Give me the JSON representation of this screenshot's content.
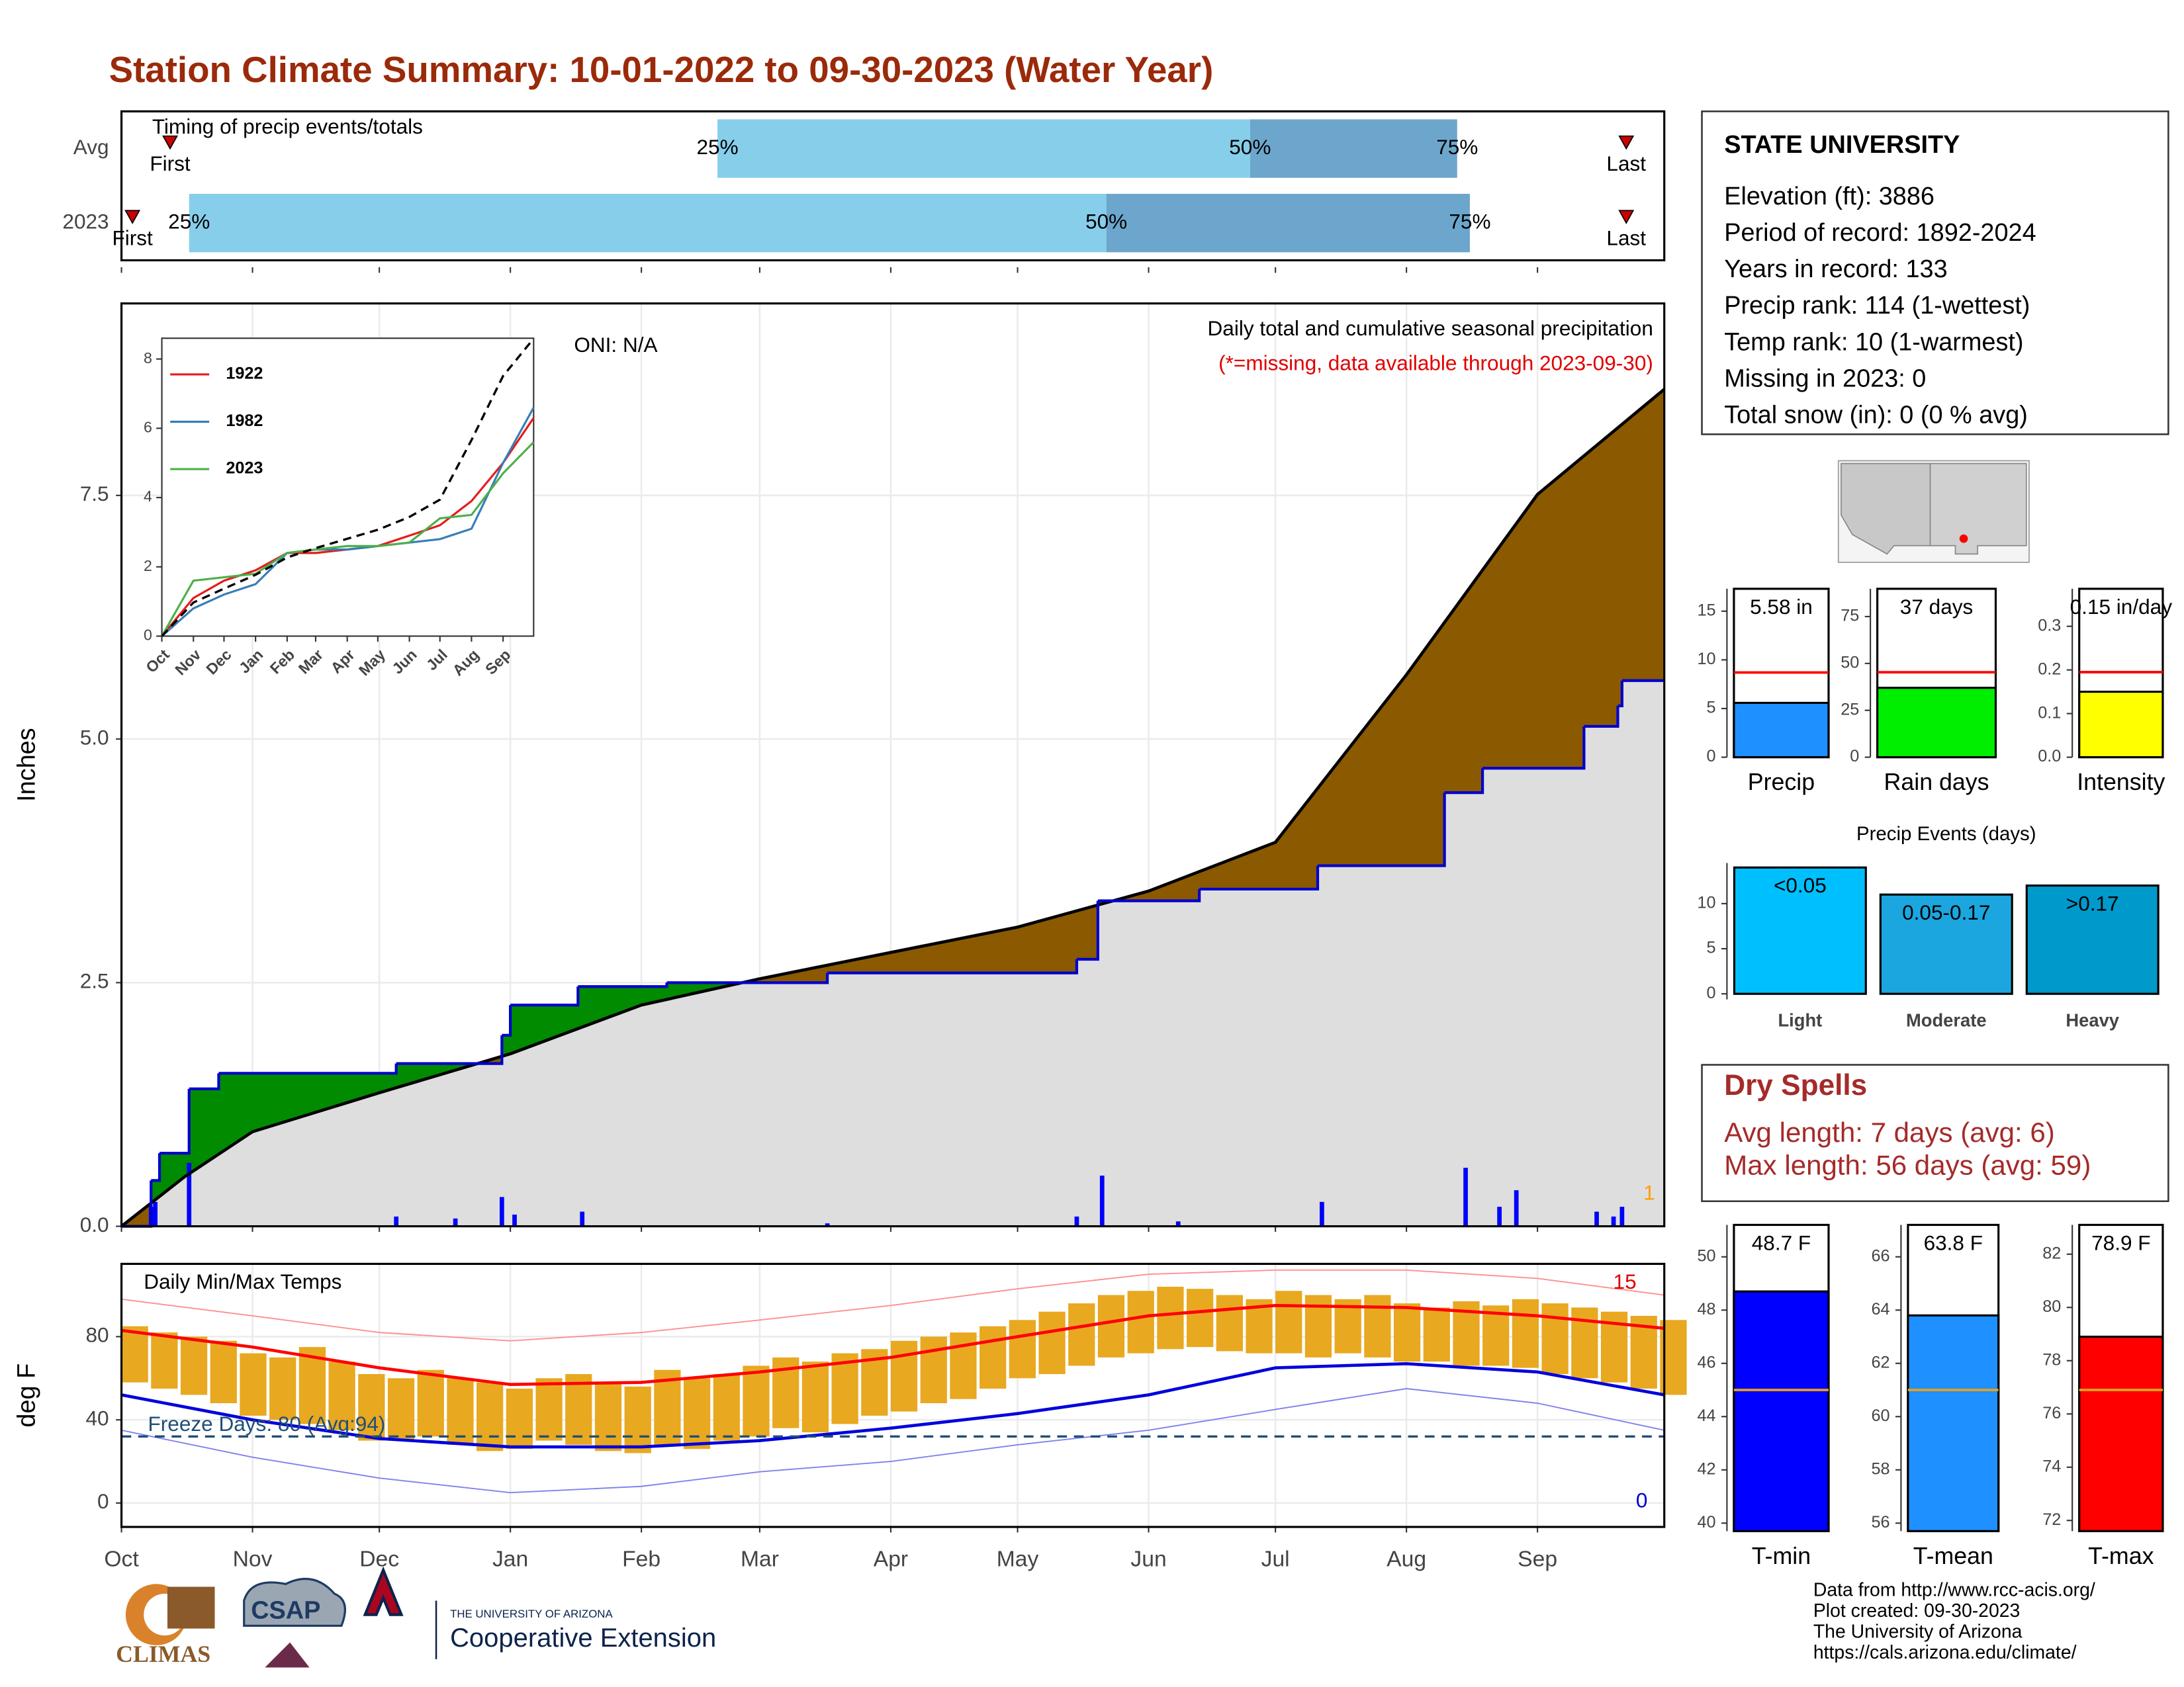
{
  "title": "Station Climate Summary: 10-01-2022 to 09-30-2023 (Water Year)",
  "info": {
    "title": "STATE UNIVERSITY",
    "lines": [
      "Elevation (ft): 3886",
      "Period of record: 1892-2024",
      "Years in record: 133",
      "Precip rank: 114 (1-wettest)",
      "Temp rank: 10 (1-warmest)",
      "Missing in 2023: 0",
      "Total snow (in): 0 (0 % avg)"
    ]
  },
  "dry_spells": {
    "title": "Dry Spells",
    "lines": [
      "Avg length: 7 days (avg: 6)",
      "Max length: 56 days (avg: 59)"
    ]
  },
  "credits": [
    "Data from http://www.rcc-acis.org/",
    "Plot created: 09-30-2023",
    "The University of Arizona",
    "https://cals.arizona.edu/climate/"
  ],
  "logos": {
    "climas": "CLIMAS",
    "csap": "CSAP",
    "university": "THE UNIVERSITY OF ARIZONA",
    "extension": "Cooperative Extension"
  },
  "chart_data": [
    {
      "type": "timing",
      "title": "Timing of precip events/totals",
      "categories": [
        "Avg",
        "2023"
      ],
      "xlim": [
        0,
        365
      ],
      "markers": [
        {
          "name": "First",
          "values": [
            11.5,
            2.6
          ]
        },
        {
          "name": "Last",
          "values": [
            356,
            356
          ]
        }
      ],
      "percentiles": [
        {
          "name": "25%",
          "values": [
            141,
            16
          ]
        },
        {
          "name": "50%",
          "values": [
            267,
            233
          ]
        },
        {
          "name": "75%",
          "values": [
            316,
            319
          ]
        }
      ],
      "colors": [
        "#87ceeb",
        "#6ca6cd"
      ],
      "marker_color": "#cc0000"
    },
    {
      "type": "precip",
      "title": "Daily total and cumulative seasonal precipitation",
      "subtitle": "(*=missing, data available through 2023-09-30)",
      "annotation": "ONI: N/A",
      "ylabel": "Inches",
      "count_label": "1",
      "xlim": [
        0,
        365
      ],
      "ylim": [
        0,
        9.47
      ],
      "xticks": [
        0,
        31,
        61,
        92,
        123,
        151,
        182,
        212,
        243,
        273,
        304,
        335
      ],
      "yticks": [
        {
          "value": 0,
          "label": "0.0"
        },
        2.5,
        {
          "value": 5,
          "label": "5.0"
        },
        7.5
      ],
      "grid": true,
      "average": {
        "color": "#000000",
        "x": [
          0,
          15,
          31,
          61,
          92,
          123,
          151,
          182,
          212,
          243,
          273,
          304,
          335,
          365
        ],
        "values": [
          0,
          0.51,
          0.97,
          1.37,
          1.77,
          2.27,
          2.54,
          2.81,
          3.07,
          3.44,
          3.94,
          5.66,
          7.51,
          8.59
        ]
      },
      "current": {
        "color": "#0000cc",
        "x": [
          0,
          7,
          9,
          16,
          23,
          65,
          90,
          92,
          108,
          129,
          167,
          226,
          231,
          255,
          283,
          313,
          322,
          346,
          354,
          355,
          365
        ],
        "values": [
          0,
          0.47,
          0.75,
          1.41,
          1.57,
          1.67,
          1.96,
          2.27,
          2.46,
          2.5,
          2.6,
          2.74,
          3.34,
          3.46,
          3.7,
          4.45,
          4.7,
          5.13,
          5.34,
          5.6,
          5.6
        ]
      },
      "bars": {
        "color": "#0000ff",
        "x": [
          7,
          8,
          16,
          65,
          79,
          90,
          93,
          109,
          167,
          226,
          232,
          250,
          284,
          318,
          326,
          330,
          349,
          353,
          355
        ],
        "values": [
          0.2,
          0.25,
          0.65,
          0.1,
          0.08,
          0.3,
          0.12,
          0.15,
          0.03,
          0.1,
          0.52,
          0.05,
          0.25,
          0.6,
          0.2,
          0.37,
          0.15,
          0.1,
          0.2
        ]
      },
      "above_color": "#008b00",
      "below_color": "#8b5a00",
      "area_color": "#dedede"
    },
    {
      "type": "line",
      "xlim": [
        0,
        365
      ],
      "ylim": [
        0,
        8.6
      ],
      "yticks": [
        0,
        2,
        4,
        6,
        8
      ],
      "xticks": [
        {
          "value": 0,
          "label": "Oct"
        },
        {
          "value": 31,
          "label": "Nov"
        },
        {
          "value": 61,
          "label": "Dec"
        },
        {
          "value": 92,
          "label": "Jan"
        },
        {
          "value": 123,
          "label": "Feb"
        },
        {
          "value": 151,
          "label": "Mar"
        },
        {
          "value": 182,
          "label": "Apr"
        },
        {
          "value": 212,
          "label": "May"
        },
        {
          "value": 243,
          "label": "Jun"
        },
        {
          "value": 273,
          "label": "Jul"
        },
        {
          "value": 304,
          "label": "Aug"
        },
        {
          "value": 335,
          "label": "Sep"
        }
      ],
      "x": [
        0,
        31,
        61,
        92,
        123,
        151,
        182,
        212,
        243,
        273,
        304,
        335,
        365
      ],
      "average": {
        "color": "#000000",
        "values": [
          0,
          0.97,
          1.37,
          1.77,
          2.27,
          2.54,
          2.81,
          3.07,
          3.44,
          3.94,
          5.66,
          7.51,
          8.59
        ]
      },
      "series": [
        {
          "name": "1922",
          "color": "#e41a1c",
          "values": [
            0,
            1.1,
            1.6,
            1.9,
            2.4,
            2.4,
            2.5,
            2.6,
            2.9,
            3.2,
            3.9,
            5.0,
            6.3
          ]
        },
        {
          "name": "1982",
          "color": "#377eb8",
          "values": [
            0,
            0.8,
            1.2,
            1.5,
            2.4,
            2.5,
            2.5,
            2.6,
            2.7,
            2.8,
            3.1,
            5.0,
            6.6
          ]
        },
        {
          "name": "2023",
          "color": "#4daf4a",
          "values": [
            0,
            1.6,
            1.7,
            1.8,
            2.4,
            2.5,
            2.6,
            2.6,
            2.7,
            3.4,
            3.5,
            4.7,
            5.6
          ]
        }
      ]
    },
    {
      "type": "temps",
      "title": "Daily Min/Max Temps",
      "annotation": "Freeze Days: 80 (Avg:94)",
      "freeze": 32,
      "ylabel": "deg F",
      "record_high_count": "15",
      "record_low_count": "0",
      "xlim": [
        0,
        365
      ],
      "ylim": [
        -11.5,
        115
      ],
      "yticks": [
        0,
        40,
        80
      ],
      "grid": true,
      "xticks": [
        {
          "value": 0,
          "label": "Oct"
        },
        {
          "value": 31,
          "label": "Nov"
        },
        {
          "value": 61,
          "label": "Dec"
        },
        {
          "value": 92,
          "label": "Jan"
        },
        {
          "value": 123,
          "label": "Feb"
        },
        {
          "value": 151,
          "label": "Mar"
        },
        {
          "value": 182,
          "label": "Apr"
        },
        {
          "value": 212,
          "label": "May"
        },
        {
          "value": 243,
          "label": "Jun"
        },
        {
          "value": 273,
          "label": "Jul"
        },
        {
          "value": 304,
          "label": "Aug"
        },
        {
          "value": 335,
          "label": "Sep"
        }
      ],
      "bar_color": "#e8a820",
      "x": [
        0,
        7,
        14,
        21,
        28,
        35,
        42,
        49,
        56,
        63,
        70,
        77,
        84,
        91,
        98,
        105,
        112,
        119,
        126,
        133,
        140,
        147,
        154,
        161,
        168,
        175,
        182,
        189,
        196,
        203,
        210,
        217,
        224,
        231,
        238,
        245,
        252,
        259,
        266,
        273,
        280,
        287,
        294,
        301,
        308,
        315,
        322,
        329,
        336,
        343,
        350,
        357,
        364
      ],
      "low": [
        58,
        55,
        52,
        48,
        42,
        40,
        38,
        35,
        30,
        30,
        32,
        28,
        25,
        26,
        30,
        28,
        25,
        24,
        28,
        26,
        30,
        32,
        36,
        34,
        38,
        42,
        44,
        48,
        50,
        55,
        60,
        62,
        66,
        70,
        72,
        74,
        75,
        73,
        72,
        72,
        70,
        72,
        70,
        68,
        68,
        66,
        66,
        65,
        62,
        60,
        58,
        55,
        52
      ],
      "high": [
        85,
        82,
        80,
        78,
        72,
        70,
        75,
        68,
        62,
        60,
        64,
        60,
        58,
        55,
        60,
        62,
        58,
        56,
        64,
        60,
        62,
        66,
        70,
        68,
        72,
        74,
        78,
        80,
        82,
        85,
        88,
        92,
        96,
        100,
        102,
        104,
        103,
        100,
        98,
        102,
        100,
        98,
        100,
        96,
        94,
        97,
        95,
        98,
        96,
        94,
        92,
        90,
        88
      ],
      "line_x": [
        0,
        31,
        61,
        92,
        123,
        151,
        182,
        212,
        243,
        273,
        304,
        335,
        365
      ],
      "avg_max": {
        "color": "#ff0000",
        "values": [
          83,
          75,
          65,
          57,
          58,
          63,
          70,
          80,
          90,
          95,
          94,
          90,
          84
        ]
      },
      "avg_min": {
        "color": "#0000dd",
        "values": [
          52,
          40,
          31,
          27,
          27,
          30,
          36,
          43,
          52,
          65,
          67,
          63,
          52
        ]
      },
      "record_max": {
        "color": "#ff9090",
        "values": [
          98,
          90,
          82,
          78,
          82,
          88,
          95,
          103,
          110,
          112,
          112,
          108,
          100
        ]
      },
      "record_min": {
        "color": "#8080ee",
        "values": [
          35,
          22,
          12,
          5,
          8,
          15,
          20,
          28,
          35,
          45,
          55,
          48,
          35
        ]
      },
      "freeze_color": "#1f4e79"
    },
    {
      "type": "single_bar",
      "categories": [
        "Precip"
      ],
      "values": [
        5.58
      ],
      "value_labels": [
        "5.58 in"
      ],
      "average": 8.7,
      "color": "#1e90ff",
      "avg_color": "#ff0000",
      "ylim": [
        0,
        17.3
      ],
      "yticks": [
        0,
        5,
        10,
        15
      ]
    },
    {
      "type": "single_bar",
      "categories": [
        "Rain days"
      ],
      "values": [
        37
      ],
      "value_labels": [
        "37 days"
      ],
      "average": 45.3,
      "color": "#00ee00",
      "avg_color": "#ff0000",
      "ylim": [
        0,
        89.8
      ],
      "yticks": [
        0,
        25,
        50,
        75
      ]
    },
    {
      "type": "single_bar",
      "categories": [
        "Intensity"
      ],
      "values": [
        0.15
      ],
      "value_labels": [
        "0.15 in/day"
      ],
      "average": 0.195,
      "color": "#ffff00",
      "avg_color": "#ff0000",
      "ylim": [
        0,
        0.386
      ],
      "yticks": [
        {
          "value": 0,
          "label": "0.0"
        },
        0.1,
        0.2,
        0.3
      ]
    },
    {
      "type": "bar",
      "title": "Precip Events (days)",
      "categories": [
        "Light",
        "Moderate",
        "Heavy"
      ],
      "bar_labels": [
        "<0.05",
        "0.05-0.17",
        ">0.17"
      ],
      "values": [
        14,
        11,
        12
      ],
      "colors": [
        "#00bfff",
        "#1ca6e0",
        "#0099cc"
      ],
      "ylim": [
        0,
        14.5
      ],
      "yticks": [
        0,
        5,
        10
      ]
    },
    {
      "type": "single_bar",
      "categories": [
        "T-min"
      ],
      "values": [
        48.7
      ],
      "value_labels": [
        "48.7 F"
      ],
      "average": 45.0,
      "color": "#0000ff",
      "avg_color": "#e8a020",
      "ylim": [
        39.7,
        51.2
      ],
      "yticks": [
        40,
        42,
        44,
        46,
        48,
        50
      ]
    },
    {
      "type": "single_bar",
      "categories": [
        "T-mean"
      ],
      "values": [
        63.8
      ],
      "value_labels": [
        "63.8 F"
      ],
      "average": 61.0,
      "color": "#1e90ff",
      "avg_color": "#e8a020",
      "ylim": [
        55.7,
        67.2
      ],
      "yticks": [
        56,
        58,
        60,
        62,
        64,
        66
      ]
    },
    {
      "type": "single_bar",
      "categories": [
        "T-max"
      ],
      "values": [
        78.9
      ],
      "value_labels": [
        "78.9 F"
      ],
      "average": 76.9,
      "color": "#ff0000",
      "avg_color": "#e8a020",
      "ylim": [
        71.6,
        83.1
      ],
      "yticks": [
        72,
        74,
        76,
        78,
        80,
        82
      ]
    }
  ]
}
